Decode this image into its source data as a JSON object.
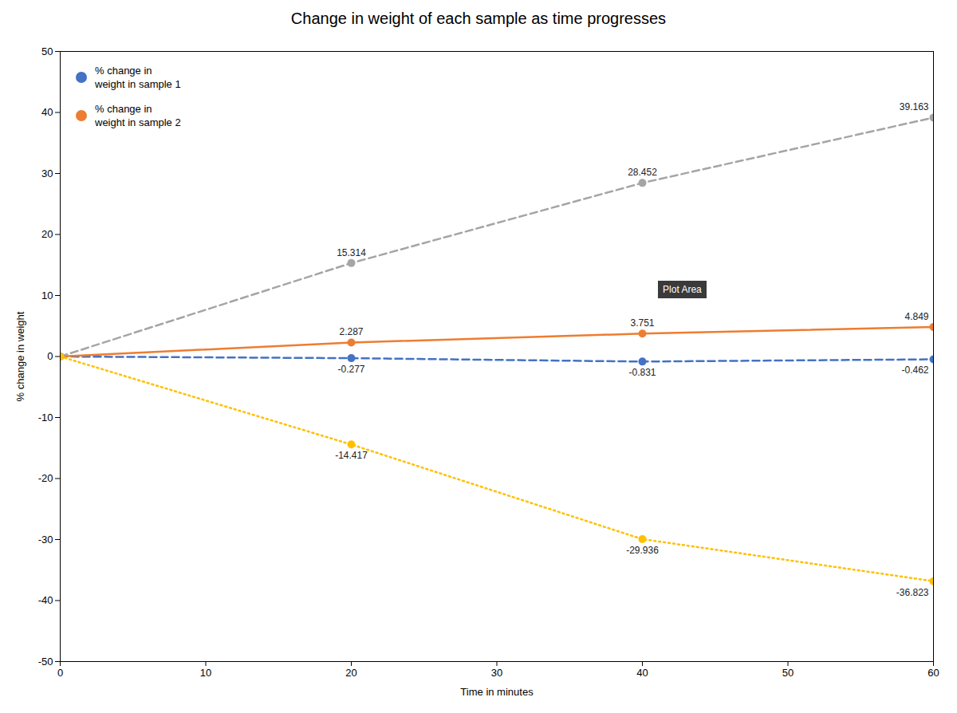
{
  "chart_data": {
    "type": "line",
    "title": "Change in weight  of each sample as time progresses",
    "x_label": "Time in minutes",
    "y_label": "% change in weight",
    "x": [
      0,
      20,
      40,
      60
    ],
    "series": [
      {
        "name": "% change in\nweight in sample 1",
        "color": "#4472C4",
        "line_style": "dashed",
        "marker": "circle",
        "values": [
          0,
          -0.277,
          -0.831,
          -0.462
        ]
      },
      {
        "name": "% change in\nweight in sample 2",
        "color": "#ED7D31",
        "line_style": "solid",
        "marker": "circle",
        "values": [
          0,
          2.287,
          3.751,
          4.849
        ]
      },
      {
        "color": "#A5A5A5",
        "line_style": "dashed",
        "marker": "circle",
        "values": [
          0,
          15.314,
          28.452,
          39.163
        ]
      },
      {
        "color": "#FFC000",
        "line_style": "dotted",
        "marker": "circle",
        "values": [
          0,
          -14.417,
          -29.936,
          -36.823
        ]
      }
    ],
    "xlim": [
      0,
      60
    ],
    "ylim": [
      -50,
      50
    ],
    "xticks": [
      0,
      10,
      20,
      30,
      40,
      50,
      60
    ],
    "yticks": [
      -50,
      -40,
      -30,
      -20,
      -10,
      0,
      10,
      20,
      30,
      40,
      50
    ],
    "grid": false,
    "legend": "upper left",
    "annotations": [
      {
        "text": "15.314",
        "x": 20,
        "y": 15.314
      },
      {
        "text": "28.452",
        "x": 40,
        "y": 28.452
      },
      {
        "text": "39.163",
        "x": 60,
        "y": 39.163
      },
      {
        "text": "2.287",
        "x": 20,
        "y": 2.287
      },
      {
        "text": "3.751",
        "x": 40,
        "y": 3.751
      },
      {
        "text": "4.849",
        "x": 60,
        "y": 4.849
      },
      {
        "text": "-0.277",
        "x": 20,
        "y": -0.277
      },
      {
        "text": "-0.831",
        "x": 40,
        "y": -0.831
      },
      {
        "text": "-0.462",
        "x": 60,
        "y": -0.462
      },
      {
        "text": "-14.417",
        "x": 20,
        "y": -14.417
      },
      {
        "text": "-29.936",
        "x": 40,
        "y": -29.936
      },
      {
        "text": "-36.823",
        "x": 60,
        "y": -36.823
      },
      {
        "text": "Plot Area"
      }
    ]
  }
}
